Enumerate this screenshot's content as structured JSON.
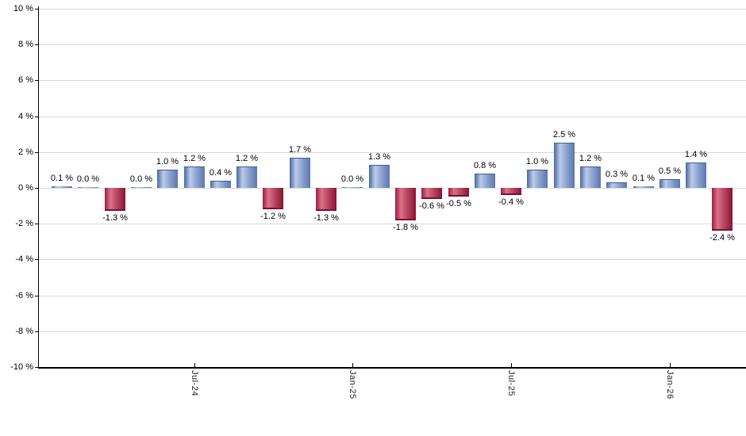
{
  "chart_data": {
    "type": "bar",
    "title": "",
    "values": [
      0.1,
      0.0,
      -1.3,
      0.0,
      1.0,
      1.2,
      0.4,
      1.2,
      -1.2,
      1.7,
      -1.3,
      0.0,
      1.3,
      -1.8,
      -0.6,
      -0.5,
      0.8,
      -0.4,
      1.0,
      2.5,
      1.2,
      0.3,
      0.1,
      0.5,
      1.4,
      -2.4
    ],
    "bar_labels": [
      "0.1 %",
      "0.0 %",
      "-1.3 %",
      "0.0 %",
      "1.0 %",
      "1.2 %",
      "0.4 %",
      "1.2 %",
      "-1.2 %",
      "1.7 %",
      "-1.3 %",
      "0.0 %",
      "1.3 %",
      "-1.8 %",
      "-0.6 %",
      "-0.5 %",
      "0.8 %",
      "-0.4 %",
      "1.0 %",
      "2.5 %",
      "1.2 %",
      "0.3 %",
      "0.1 %",
      "0.5 %",
      "1.4 %",
      "-2.4 %"
    ],
    "y_ticks": [
      "10 %",
      "8 %",
      "6 %",
      "4 %",
      "2 %",
      "0 %",
      "-2 %",
      "-4 %",
      "-6 %",
      "-8 %",
      "-10 %"
    ],
    "y_tick_values": [
      10,
      8,
      6,
      4,
      2,
      0,
      -2,
      -4,
      -6,
      -8,
      -10
    ],
    "ylim": [
      -10,
      10
    ],
    "y_step": 2,
    "x_ticks": [
      {
        "label": "Jul-24",
        "bar_index": 5
      },
      {
        "label": "Jan-25",
        "bar_index": 11
      },
      {
        "label": "Jul-25",
        "bar_index": 17
      },
      {
        "label": "Jan-26",
        "bar_index": 23
      }
    ],
    "grid": true,
    "legend": "none",
    "colors": {
      "positive_dark": "#4a68a0",
      "positive_light": "#bccbeb",
      "positive_mid": "#8ca3d0",
      "positive_edge": "#5d77ad",
      "positive_cap": "#3e5c96",
      "negative_dark": "#9b1d40",
      "negative_light": "#dd7089",
      "negative_mid": "#b54560",
      "negative_edge": "#8c1334",
      "negative_cap": "#7a1030",
      "grid": "#d9d9d9",
      "axis": "#000000",
      "text": "#000000"
    }
  }
}
